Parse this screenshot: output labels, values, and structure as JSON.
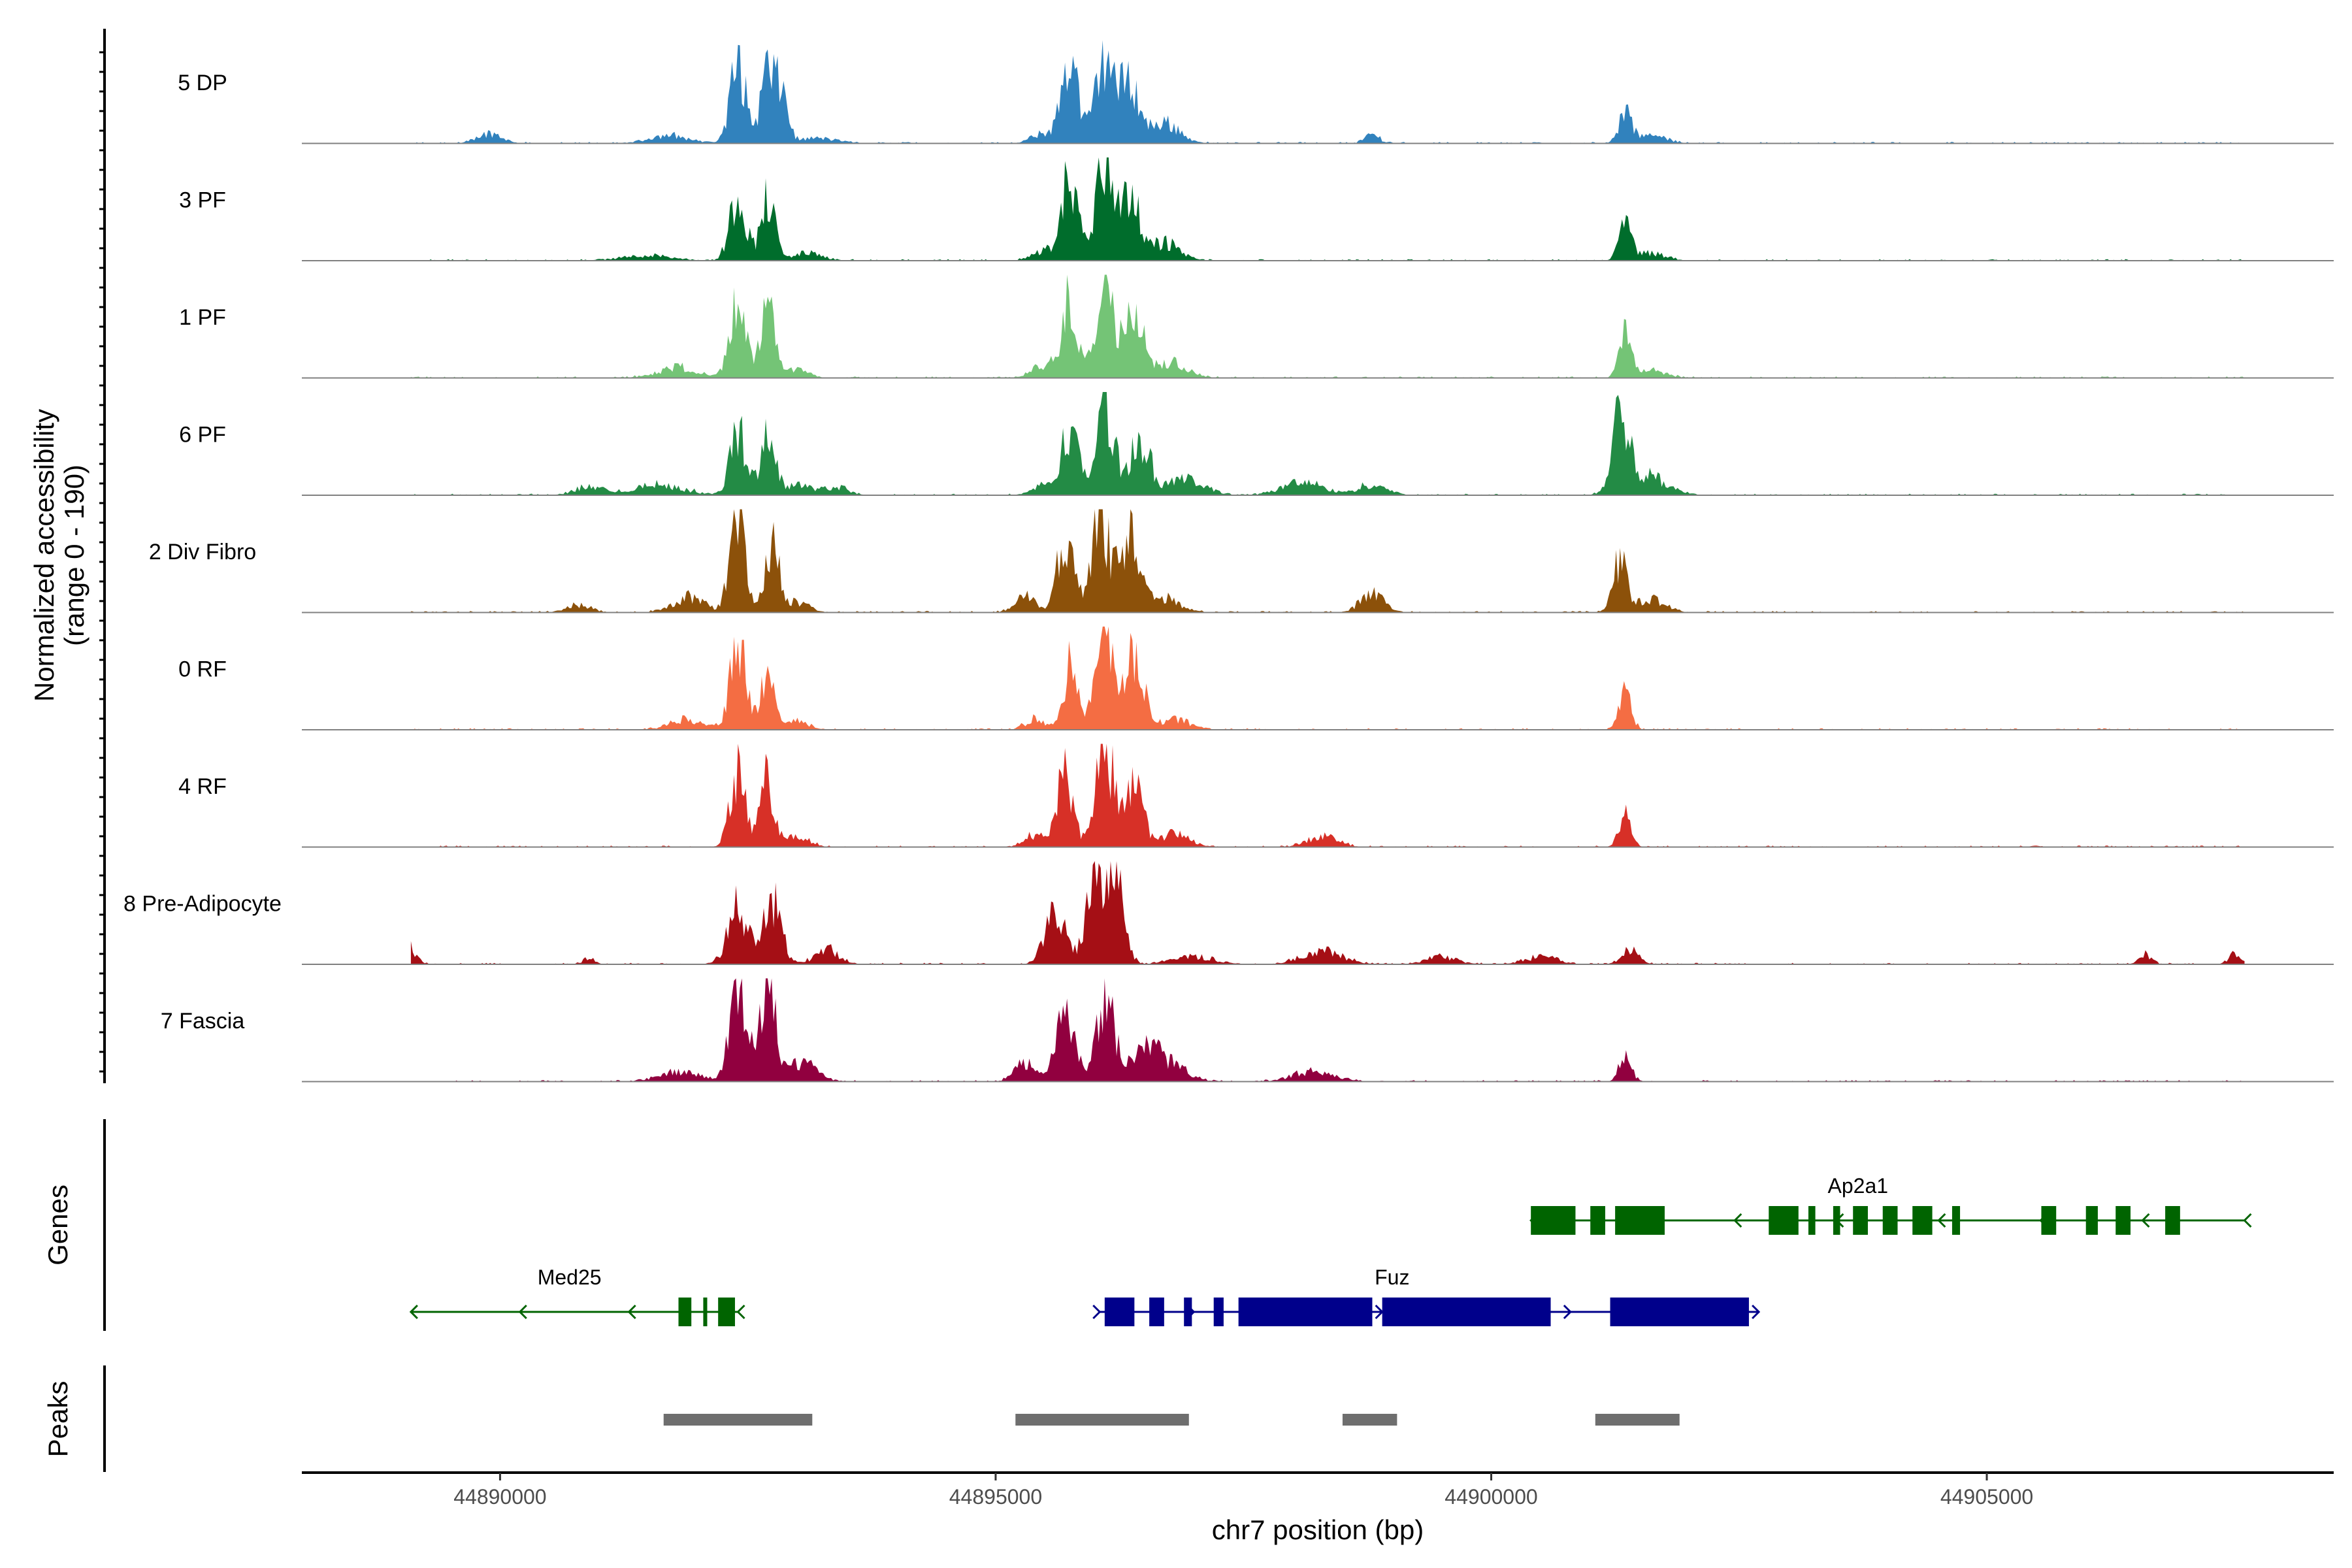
{
  "chart_data": {
    "type": "area",
    "title": "",
    "xlabel": "chr7 position (bp)",
    "ylabel_line1": "Normalized accessibility",
    "ylabel_line2": "(range 0 - 190)",
    "y_range": [
      0,
      190
    ],
    "xlim": [
      44888000,
      44908500
    ],
    "x_ticks": [
      44890000,
      44895000,
      44900000,
      44905000
    ],
    "x_tick_labels": [
      "44890000",
      "44895000",
      "44900000",
      "44905000"
    ],
    "genes_label": "Genes",
    "peaks_label": "Peaks",
    "tracks": [
      {
        "name": "5 DP",
        "color": "#3182bd",
        "peaks": [
          [
            44889900,
            20,
            120
          ],
          [
            44891700,
            15,
            200
          ],
          [
            44892400,
            150,
            80
          ],
          [
            44892700,
            140,
            70
          ],
          [
            44892850,
            90,
            60
          ],
          [
            44893200,
            10,
            200
          ],
          [
            44895500,
            20,
            120
          ],
          [
            44895750,
            170,
            80
          ],
          [
            44896100,
            175,
            90
          ],
          [
            44896350,
            120,
            90
          ],
          [
            44896700,
            40,
            150
          ],
          [
            44898800,
            18,
            70
          ],
          [
            44901350,
            60,
            60
          ],
          [
            44901600,
            15,
            150
          ]
        ]
      },
      {
        "name": "3 PF",
        "color": "#006d2c",
        "peaks": [
          [
            44891500,
            10,
            250
          ],
          [
            44892400,
            130,
            80
          ],
          [
            44892700,
            120,
            70
          ],
          [
            44893100,
            15,
            150
          ],
          [
            44895500,
            20,
            120
          ],
          [
            44895750,
            160,
            80
          ],
          [
            44896100,
            200,
            90
          ],
          [
            44896350,
            130,
            90
          ],
          [
            44896700,
            35,
            150
          ],
          [
            44901350,
            70,
            60
          ],
          [
            44901600,
            15,
            150
          ]
        ]
      },
      {
        "name": "1 PF",
        "color": "#74c476",
        "peaks": [
          [
            44891800,
            20,
            200
          ],
          [
            44892400,
            140,
            80
          ],
          [
            44892700,
            130,
            70
          ],
          [
            44893000,
            15,
            120
          ],
          [
            44895500,
            25,
            120
          ],
          [
            44895750,
            150,
            80
          ],
          [
            44896100,
            200,
            90
          ],
          [
            44896400,
            120,
            100
          ],
          [
            44896800,
            30,
            150
          ],
          [
            44901350,
            90,
            60
          ],
          [
            44901600,
            15,
            150
          ]
        ]
      },
      {
        "name": "6 PF",
        "color": "#238b45",
        "peaks": [
          [
            44890900,
            15,
            150
          ],
          [
            44891600,
            20,
            250
          ],
          [
            44892400,
            120,
            80
          ],
          [
            44892700,
            130,
            70
          ],
          [
            44893000,
            20,
            150
          ],
          [
            44893400,
            15,
            120
          ],
          [
            44895500,
            20,
            120
          ],
          [
            44895750,
            130,
            80
          ],
          [
            44896100,
            180,
            90
          ],
          [
            44896450,
            110,
            100
          ],
          [
            44896900,
            30,
            200
          ],
          [
            44898100,
            25,
            200
          ],
          [
            44898800,
            20,
            150
          ],
          [
            44901300,
            160,
            80
          ],
          [
            44901550,
            40,
            200
          ]
        ]
      },
      {
        "name": "2 Div Fibro",
        "color": "#8c510a",
        "peaks": [
          [
            44890800,
            15,
            120
          ],
          [
            44891900,
            30,
            150
          ],
          [
            44892400,
            180,
            80
          ],
          [
            44892750,
            140,
            70
          ],
          [
            44893000,
            20,
            120
          ],
          [
            44895300,
            30,
            100
          ],
          [
            44895700,
            150,
            80
          ],
          [
            44896050,
            200,
            90
          ],
          [
            44896350,
            160,
            90
          ],
          [
            44896700,
            30,
            150
          ],
          [
            44898800,
            35,
            120
          ],
          [
            44901300,
            100,
            70
          ],
          [
            44901600,
            25,
            150
          ]
        ]
      },
      {
        "name": "0 RF",
        "color": "#f46d43",
        "peaks": [
          [
            44891900,
            20,
            180
          ],
          [
            44892400,
            160,
            80
          ],
          [
            44892700,
            110,
            70
          ],
          [
            44893000,
            15,
            120
          ],
          [
            44895400,
            20,
            100
          ],
          [
            44895750,
            120,
            70
          ],
          [
            44896100,
            200,
            90
          ],
          [
            44896400,
            140,
            90
          ],
          [
            44896800,
            20,
            150
          ],
          [
            44901350,
            80,
            60
          ]
        ]
      },
      {
        "name": "4 RF",
        "color": "#d73027",
        "peaks": [
          [
            44892400,
            140,
            80
          ],
          [
            44892700,
            130,
            70
          ],
          [
            44893000,
            20,
            120
          ],
          [
            44895400,
            25,
            100
          ],
          [
            44895700,
            140,
            80
          ],
          [
            44896100,
            200,
            90
          ],
          [
            44896400,
            110,
            90
          ],
          [
            44896800,
            25,
            150
          ],
          [
            44898300,
            20,
            150
          ],
          [
            44901350,
            60,
            60
          ]
        ]
      },
      {
        "name": "8 Pre-Adipocyte",
        "color": "#a50f15",
        "peaks": [
          [
            44889100,
            30,
            60
          ],
          [
            44890900,
            15,
            50
          ],
          [
            44892400,
            110,
            100
          ],
          [
            44892750,
            120,
            90
          ],
          [
            44893300,
            30,
            120
          ],
          [
            44895600,
            100,
            100
          ],
          [
            44896000,
            180,
            90
          ],
          [
            44896200,
            170,
            90
          ],
          [
            44897000,
            15,
            200
          ],
          [
            44898300,
            25,
            200
          ],
          [
            44899500,
            15,
            150
          ],
          [
            44900500,
            15,
            150
          ],
          [
            44901400,
            30,
            80
          ],
          [
            44906600,
            20,
            60
          ],
          [
            44907500,
            20,
            60
          ]
        ]
      },
      {
        "name": "7 Fascia",
        "color": "#91003f",
        "peaks": [
          [
            44891800,
            20,
            200
          ],
          [
            44892400,
            200,
            80
          ],
          [
            44892700,
            180,
            80
          ],
          [
            44893050,
            35,
            150
          ],
          [
            44895300,
            40,
            100
          ],
          [
            44895700,
            130,
            90
          ],
          [
            44896100,
            150,
            100
          ],
          [
            44896500,
            60,
            150
          ],
          [
            44896800,
            30,
            150
          ],
          [
            44898200,
            20,
            200
          ],
          [
            44901350,
            50,
            60
          ]
        ]
      }
    ],
    "gene_models": [
      {
        "name": "Ap2a1",
        "color": "#006400",
        "strand": "-",
        "start": 44900400,
        "end": 44907600,
        "label_x": 44903700,
        "exons": [
          [
            44900400,
            44900850
          ],
          [
            44901000,
            44901150
          ],
          [
            44901250,
            44901750
          ],
          [
            44902800,
            44903100
          ],
          [
            44903200,
            44903270
          ],
          [
            44903450,
            44903520
          ],
          [
            44903650,
            44903800
          ],
          [
            44903950,
            44904100
          ],
          [
            44904250,
            44904450
          ],
          [
            44904650,
            44904730
          ],
          [
            44905550,
            44905700
          ],
          [
            44906000,
            44906120
          ],
          [
            44906300,
            44906450
          ],
          [
            44906800,
            44906950
          ]
        ]
      },
      {
        "name": "Med25",
        "color": "#006400",
        "strand": "-",
        "start": 44889100,
        "end": 44892400,
        "label_x": 44890700,
        "exons": [
          [
            44891800,
            44891930
          ],
          [
            44892050,
            44892090
          ],
          [
            44892200,
            44892370
          ]
        ]
      },
      {
        "name": "Fuz",
        "color": "#00008b",
        "strand": "+",
        "start": 44896050,
        "end": 44902700,
        "label_x": 44899000,
        "exons": [
          [
            44896100,
            44896400
          ],
          [
            44896550,
            44896700
          ],
          [
            44896900,
            44896980
          ],
          [
            44897200,
            44897300
          ],
          [
            44897450,
            44898800
          ],
          [
            44898900,
            44900600
          ],
          [
            44901200,
            44902600
          ]
        ]
      }
    ],
    "peak_regions": [
      [
        44891650,
        44893150
      ],
      [
        44895200,
        44896950
      ],
      [
        44898500,
        44899050
      ],
      [
        44901050,
        44901900
      ]
    ]
  }
}
